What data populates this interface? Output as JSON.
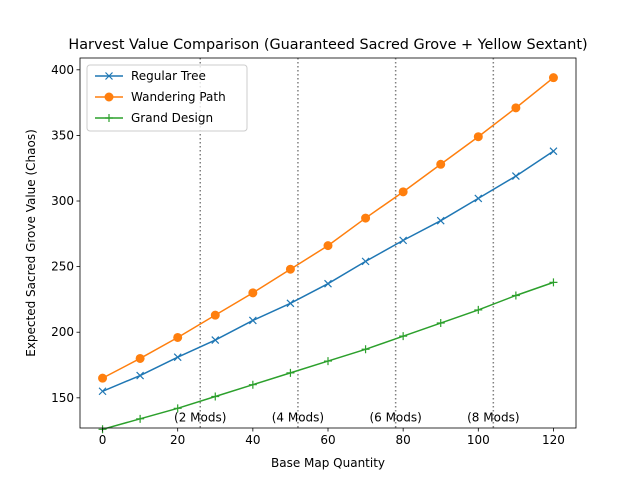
{
  "chart_data": {
    "type": "line",
    "title": "Harvest Value Comparison (Guaranteed Sacred Grove + Yellow Sextant)",
    "xlabel": "Base Map Quantity",
    "ylabel": "Expected Sacred Grove Value (Chaos)",
    "xlim": [
      -6,
      126
    ],
    "ylim": [
      127,
      409
    ],
    "xticks": [
      0,
      20,
      40,
      60,
      80,
      100,
      120
    ],
    "yticks": [
      150,
      200,
      250,
      300,
      350,
      400
    ],
    "x": [
      0,
      10,
      20,
      30,
      40,
      50,
      60,
      70,
      80,
      90,
      100,
      110,
      120
    ],
    "series": [
      {
        "name": "Regular Tree",
        "color": "#1f77b4",
        "marker": "x",
        "values": [
          155,
          167,
          181,
          194,
          209,
          222,
          237,
          254,
          270,
          285,
          302,
          319,
          338
        ]
      },
      {
        "name": "Wandering Path",
        "color": "#ff7f0e",
        "marker": "circle",
        "values": [
          165,
          180,
          196,
          213,
          230,
          248,
          266,
          287,
          307,
          328,
          349,
          371,
          394
        ]
      },
      {
        "name": "Grand Design",
        "color": "#2ca02c",
        "marker": "plus",
        "values": [
          126,
          134,
          142,
          151,
          160,
          169,
          178,
          187,
          197,
          207,
          217,
          228,
          238
        ]
      }
    ],
    "vlines": [
      {
        "x": 26,
        "label": "(2 Mods)"
      },
      {
        "x": 52,
        "label": "(4 Mods)"
      },
      {
        "x": 78,
        "label": "(6 Mods)"
      },
      {
        "x": 104,
        "label": "(8 Mods)"
      }
    ],
    "vline_label_y": 135,
    "legend_position": "top-left",
    "grid": false
  }
}
